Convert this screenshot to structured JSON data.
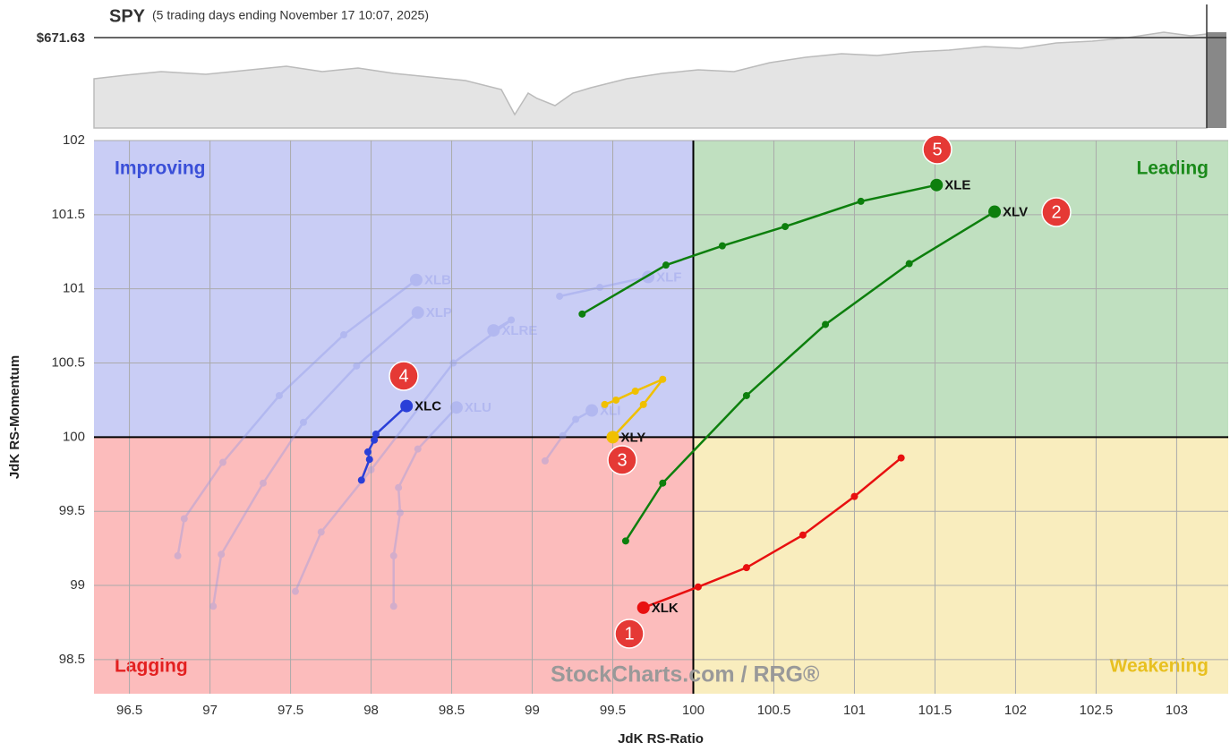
{
  "header": {
    "symbol": "SPY",
    "subtitle": "(5 trading days ending November 17 10:07, 2025)",
    "price": "$671.63"
  },
  "chart_data": {
    "type": "rrg",
    "x_label": "JdK RS-Ratio",
    "y_label": "JdK RS-Momentum",
    "xlim": [
      96.28,
      103.32
    ],
    "ylim": [
      98.27,
      102
    ],
    "xticks": [
      96.5,
      97,
      97.5,
      98,
      98.5,
      99,
      99.5,
      100,
      100.5,
      101,
      101.5,
      102,
      102.5,
      103
    ],
    "yticks": [
      98.5,
      99,
      99.5,
      100,
      100.5,
      101,
      101.5,
      102
    ],
    "grid": true,
    "center": {
      "x": 100,
      "y": 100
    },
    "quadrants": [
      {
        "label": "Improving",
        "color": "#3a4fd8",
        "fill": "#c9cdf5"
      },
      {
        "label": "Leading",
        "color": "#1a8a1a",
        "fill": "#c0e0c0"
      },
      {
        "label": "Lagging",
        "color": "#e32020",
        "fill": "#fcbcbc"
      },
      {
        "label": "Weakening",
        "color": "#e8c020",
        "fill": "#f9edbe"
      }
    ],
    "series": [
      {
        "name": "XLB",
        "color": "#8a94e8",
        "faded": true,
        "x": [
          96.8,
          96.84,
          97.08,
          97.43,
          97.83,
          98.28
        ],
        "values": [
          99.2,
          99.45,
          99.83,
          100.28,
          100.69,
          101.06
        ]
      },
      {
        "name": "XLP",
        "color": "#8a94e8",
        "faded": true,
        "x": [
          97.02,
          97.07,
          97.33,
          97.58,
          97.91,
          98.29
        ],
        "values": [
          98.86,
          99.21,
          99.69,
          100.1,
          100.48,
          100.84
        ]
      },
      {
        "name": "XLRE",
        "color": "#8a94e8",
        "faded": true,
        "x": [
          97.53,
          97.69,
          98.0,
          98.51,
          98.87,
          98.76
        ],
        "values": [
          98.96,
          99.36,
          99.78,
          100.5,
          100.79,
          100.72
        ]
      },
      {
        "name": "XLU",
        "color": "#8a94e8",
        "faded": true,
        "x": [
          98.14,
          98.14,
          98.18,
          98.17,
          98.29,
          98.53
        ],
        "values": [
          98.86,
          99.2,
          99.49,
          99.66,
          99.92,
          100.2
        ]
      },
      {
        "name": "XLI",
        "color": "#8a94e8",
        "faded": true,
        "x": [
          99.08,
          99.19,
          99.27,
          99.37
        ],
        "values": [
          99.84,
          100.01,
          100.12,
          100.18
        ]
      },
      {
        "name": "XLF",
        "color": "#8a94e8",
        "faded": true,
        "x": [
          99.17,
          99.42,
          99.72
        ],
        "values": [
          100.95,
          101.01,
          101.08
        ]
      },
      {
        "name": "XLK",
        "color": "#e81010",
        "faded": false,
        "x": [
          101.29,
          101.0,
          100.68,
          100.33,
          100.03,
          99.69
        ],
        "values": [
          99.86,
          99.6,
          99.34,
          99.12,
          98.99,
          98.85
        ]
      },
      {
        "name": "XLV",
        "color": "#0d7f0d",
        "faded": false,
        "x": [
          99.58,
          99.81,
          100.33,
          100.82,
          101.34,
          101.87
        ],
        "values": [
          99.3,
          99.69,
          100.28,
          100.76,
          101.17,
          101.52
        ]
      },
      {
        "name": "XLE",
        "color": "#0d7f0d",
        "faded": false,
        "x": [
          99.31,
          99.83,
          100.18,
          100.57,
          101.04,
          101.51
        ],
        "values": [
          100.83,
          101.16,
          101.29,
          101.42,
          101.59,
          101.7
        ]
      },
      {
        "name": "XLC",
        "color": "#2a3fd8",
        "faded": false,
        "x": [
          97.94,
          97.99,
          97.98,
          98.02,
          98.03,
          98.22
        ],
        "values": [
          99.71,
          99.85,
          99.9,
          99.98,
          100.02,
          100.21
        ]
      },
      {
        "name": "XLY",
        "color": "#f0c000",
        "faded": false,
        "x": [
          99.45,
          99.52,
          99.64,
          99.81,
          99.69,
          99.5
        ],
        "values": [
          100.22,
          100.25,
          100.31,
          100.39,
          100.22,
          100.0
        ]
      }
    ],
    "annotations": [
      "1",
      "2",
      "3",
      "4",
      "5"
    ],
    "watermark": "StockCharts.com / RRG®"
  }
}
